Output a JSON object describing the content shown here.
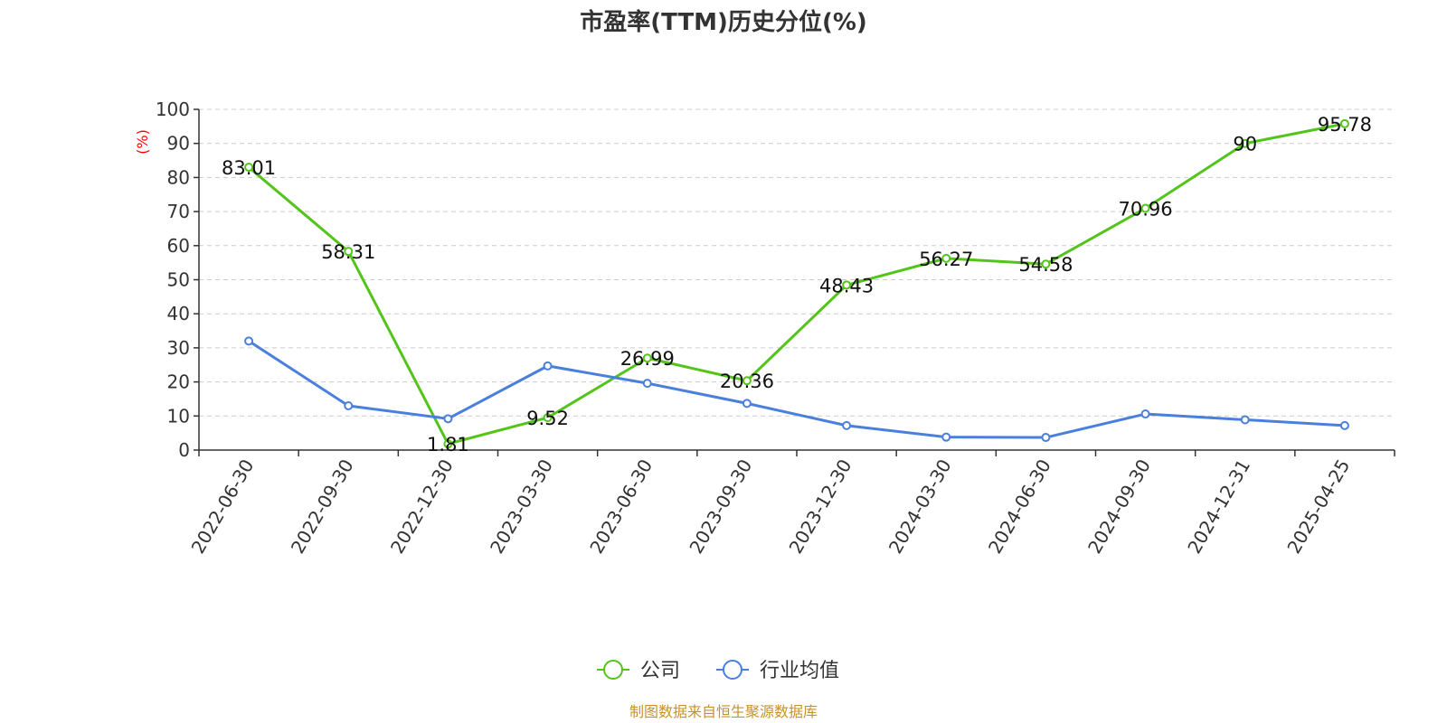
{
  "chart_data": {
    "type": "line",
    "title": "市盈率(TTM)历史分位(%)",
    "ylabel": "(%)",
    "xlabel": "",
    "ylim": [
      0,
      100
    ],
    "yticks": [
      0,
      10,
      20,
      30,
      40,
      50,
      60,
      70,
      80,
      90,
      100
    ],
    "grid": true,
    "legend_position": "bottom",
    "categories": [
      "2022-06-30",
      "2022-09-30",
      "2022-12-30",
      "2023-03-30",
      "2023-06-30",
      "2023-09-30",
      "2023-12-30",
      "2024-03-30",
      "2024-06-30",
      "2024-09-30",
      "2024-12-31",
      "2025-04-25"
    ],
    "series": [
      {
        "name": "公司",
        "color": "#52c41a",
        "values": [
          83.01,
          58.31,
          1.81,
          9.52,
          26.99,
          20.36,
          48.43,
          56.27,
          54.58,
          70.96,
          90,
          95.78
        ],
        "labels": [
          "83.01",
          "58.31",
          "1.81",
          "9.52",
          "26.99",
          "20.36",
          "48.43",
          "56.27",
          "54.58",
          "70.96",
          "90",
          "95.78"
        ]
      },
      {
        "name": "行业均值",
        "color": "#4a7fdc",
        "values": [
          32,
          13,
          9.2,
          24.7,
          19.6,
          13.7,
          7.2,
          3.8,
          3.7,
          10.6,
          8.9,
          7.2
        ]
      }
    ]
  },
  "source": "制图数据来自恒生聚源数据库"
}
